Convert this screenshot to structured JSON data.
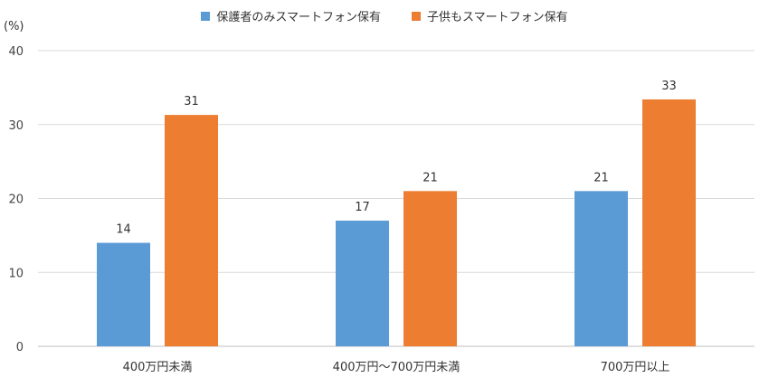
{
  "legend": {
    "items": [
      {
        "label": "保護者のみスマートフォン保有",
        "color": "#5B9BD5"
      },
      {
        "label": "子供もスマートフォン保有",
        "color": "#ED7D31"
      }
    ]
  },
  "unit_label": "(%)",
  "chart_data": {
    "type": "bar",
    "categories": [
      "400万円未満",
      "400万円〜700万円未満",
      "700万円以上"
    ],
    "series": [
      {
        "name": "保護者のみスマートフォン保有",
        "values": [
          14,
          17,
          21
        ],
        "display": [
          "14",
          "17",
          "21"
        ],
        "color": "#5B9BD5"
      },
      {
        "name": "子供もスマートフォン保有",
        "values": [
          31.3,
          21,
          33.4
        ],
        "display": [
          "31",
          "21",
          "33"
        ],
        "color": "#ED7D31"
      }
    ],
    "yticks": [
      0,
      10,
      20,
      30,
      40
    ],
    "ylim": [
      0,
      40
    ],
    "ylabel": "(%)",
    "grid": true,
    "legend_position": "top"
  }
}
